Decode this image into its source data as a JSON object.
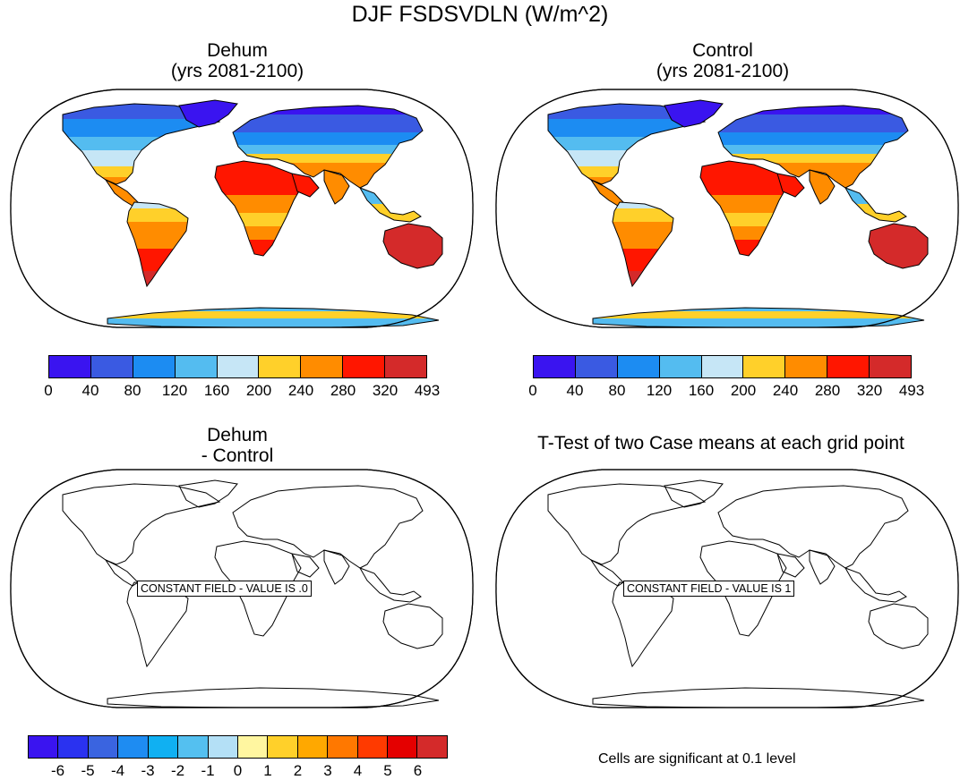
{
  "title": "DJF FSDSVDLN (W/m^2)",
  "panels": {
    "dehum": {
      "line1": "Dehum",
      "line2": "(yrs 2081-2100)"
    },
    "control": {
      "line1": "Control",
      "line2": "(yrs 2081-2100)"
    },
    "diff": {
      "line1": "Dehum",
      "line2": "- Control",
      "constant_label": "CONSTANT FIELD - VALUE IS .0"
    },
    "ttest": {
      "title": "T-Test of two Case means at each grid point",
      "constant_label": "CONSTANT FIELD - VALUE IS 1"
    }
  },
  "colorbar_top": {
    "labels": [
      "0",
      "40",
      "80",
      "120",
      "160",
      "200",
      "240",
      "280",
      "320",
      "493"
    ],
    "colors": [
      "#3a14f0",
      "#3a5ae2",
      "#1c8cf2",
      "#54bcf0",
      "#c6e6f6",
      "#ffd02a",
      "#ff8c00",
      "#ff1600",
      "#d42a2a"
    ]
  },
  "colorbar_bottom": {
    "labels": [
      "-6",
      "-5",
      "-4",
      "-3",
      "-2",
      "-1",
      "0",
      "1",
      "2",
      "3",
      "4",
      "5",
      "6"
    ],
    "colors": [
      "#3a14f0",
      "#2a32f0",
      "#3a64e0",
      "#1e8cf2",
      "#10b0f2",
      "#54c0f0",
      "#b4e0f6",
      "#fff6a0",
      "#ffd02a",
      "#ffa800",
      "#ff7800",
      "#ff3a00",
      "#e40000",
      "#d42a2a"
    ]
  },
  "footer_note": "Cells are significant at 0.1 level",
  "map_colors": {
    "ice": "#3a14f0",
    "cold": "#3a5ae2",
    "cool": "#1c8cf2",
    "mild": "#54bcf0",
    "pale": "#c6e6f6",
    "yellow": "#ffd02a",
    "orange": "#ff8c00",
    "red": "#ff1600",
    "darkred": "#d42a2a"
  }
}
